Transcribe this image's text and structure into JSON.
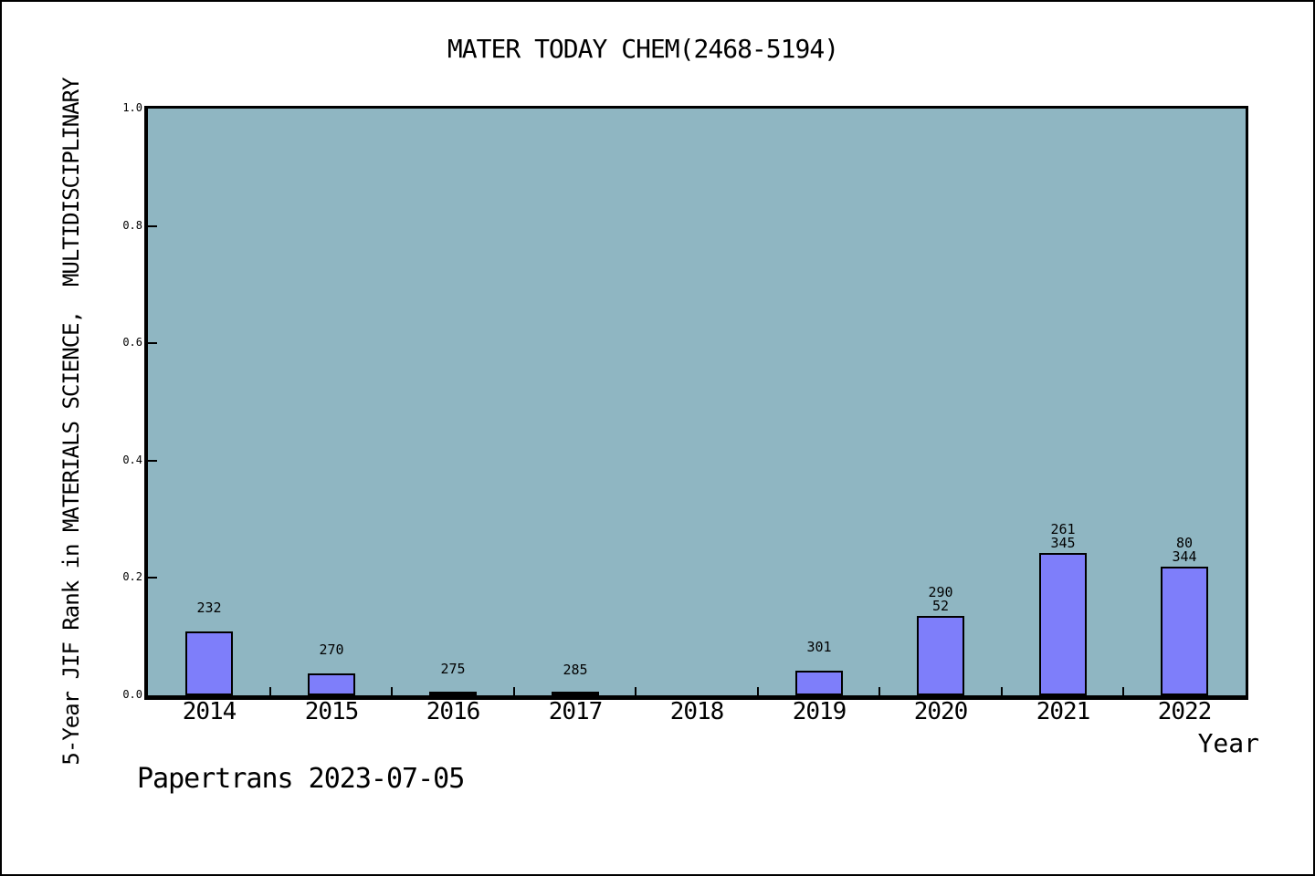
{
  "title": "MATER TODAY CHEM(2468-5194)",
  "caption": "Papertrans 2023-07-05",
  "chart_data": {
    "type": "bar",
    "title": "MATER TODAY CHEM(2468-5194)",
    "xlabel": "Year",
    "ylabel": "5-Year JIF Rank in MATERIALS SCIENCE,  MULTIDISCIPLINARY",
    "categories": [
      "2014",
      "2015",
      "2016",
      "2017",
      "2018",
      "2019",
      "2020",
      "2021",
      "2022"
    ],
    "values": [
      0.109,
      0.037,
      0.005,
      0.003,
      null,
      0.042,
      0.135,
      0.243,
      0.219
    ],
    "bar_labels": [
      [
        "232"
      ],
      [
        "270"
      ],
      [
        "275"
      ],
      [
        "285"
      ],
      [],
      [
        "301"
      ],
      [
        "290",
        "52"
      ],
      [
        "261",
        "345"
      ],
      [
        "80",
        "344"
      ]
    ],
    "ylim": [
      0.0,
      1.0
    ],
    "yticks": [
      "0.0",
      "0.2",
      "0.4",
      "0.6",
      "0.8",
      "1.0"
    ],
    "grid": false,
    "legend": null,
    "colors": {
      "plot_bg": "#8FB6C2",
      "bar_fill": "#7E7EFA",
      "bar_edge": "#000000",
      "text": "#000000"
    }
  }
}
